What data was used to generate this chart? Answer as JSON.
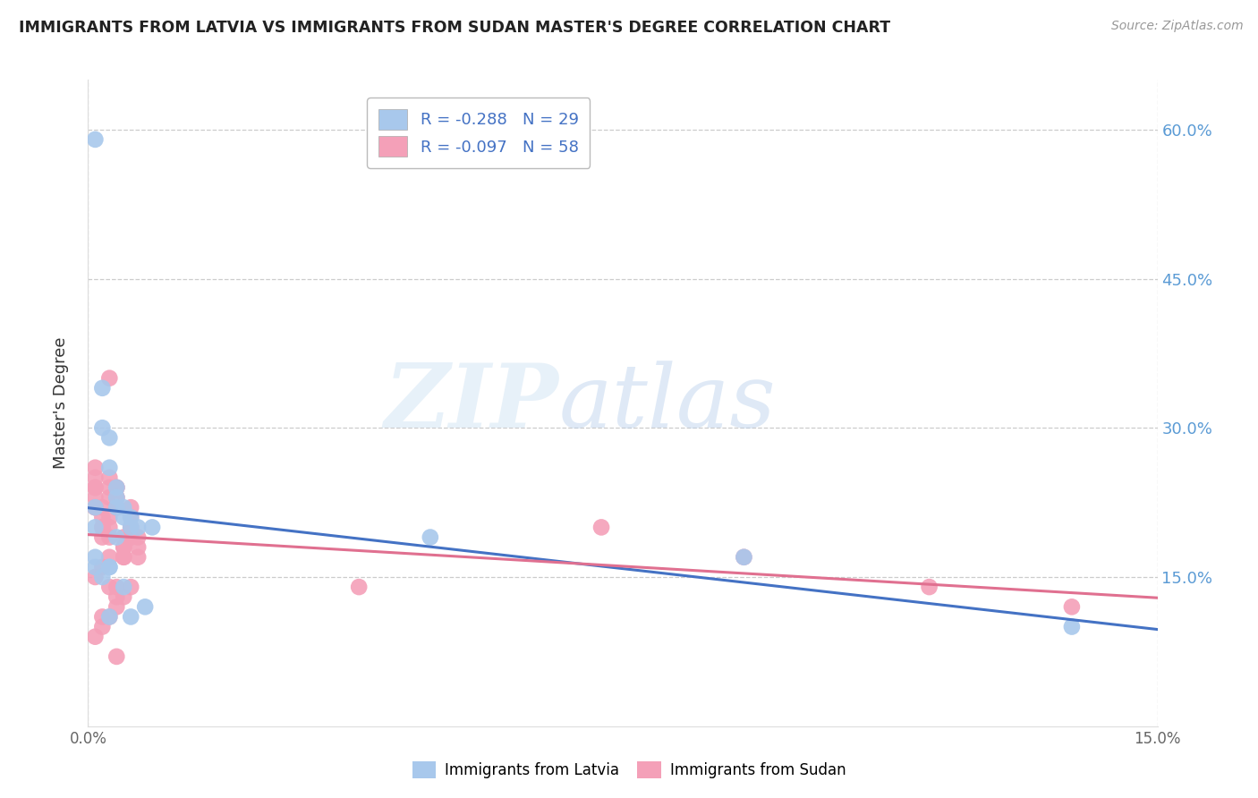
{
  "title": "IMMIGRANTS FROM LATVIA VS IMMIGRANTS FROM SUDAN MASTER'S DEGREE CORRELATION CHART",
  "source": "Source: ZipAtlas.com",
  "ylabel": "Master's Degree",
  "legend_label1": "Immigrants from Latvia",
  "legend_label2": "Immigrants from Sudan",
  "latvia_color": "#A8C8EC",
  "sudan_color": "#F4A0B8",
  "latvia_line_color": "#4472C4",
  "sudan_line_color": "#E07090",
  "latvia_R": -0.288,
  "latvia_N": 29,
  "sudan_R": -0.097,
  "sudan_N": 58,
  "xlim": [
    0.0,
    0.15
  ],
  "ylim": [
    0.0,
    0.65
  ],
  "grid_yticks": [
    0.15,
    0.3,
    0.45,
    0.6
  ],
  "right_yticklabels": [
    "15.0%",
    "30.0%",
    "45.0%",
    "60.0%"
  ],
  "latvia_scatter_x": [
    0.001,
    0.002,
    0.002,
    0.003,
    0.003,
    0.004,
    0.004,
    0.004,
    0.005,
    0.005,
    0.006,
    0.006,
    0.007,
    0.001,
    0.001,
    0.001,
    0.002,
    0.003,
    0.003,
    0.004,
    0.005,
    0.008,
    0.009,
    0.048,
    0.092,
    0.138,
    0.003,
    0.006,
    0.001
  ],
  "latvia_scatter_y": [
    0.59,
    0.34,
    0.3,
    0.29,
    0.26,
    0.24,
    0.22,
    0.23,
    0.22,
    0.21,
    0.21,
    0.2,
    0.2,
    0.2,
    0.17,
    0.16,
    0.15,
    0.16,
    0.16,
    0.19,
    0.14,
    0.12,
    0.2,
    0.19,
    0.17,
    0.1,
    0.11,
    0.11,
    0.22
  ],
  "sudan_scatter_x": [
    0.001,
    0.001,
    0.001,
    0.001,
    0.001,
    0.001,
    0.001,
    0.002,
    0.002,
    0.002,
    0.002,
    0.002,
    0.003,
    0.003,
    0.003,
    0.003,
    0.003,
    0.003,
    0.004,
    0.004,
    0.004,
    0.004,
    0.004,
    0.004,
    0.005,
    0.005,
    0.005,
    0.005,
    0.005,
    0.006,
    0.006,
    0.006,
    0.006,
    0.006,
    0.006,
    0.007,
    0.007,
    0.007,
    0.003,
    0.004,
    0.005,
    0.006,
    0.001,
    0.002,
    0.003,
    0.001,
    0.002,
    0.002,
    0.003,
    0.004,
    0.004,
    0.004,
    0.038,
    0.072,
    0.092,
    0.118,
    0.138,
    0.003
  ],
  "sudan_scatter_y": [
    0.22,
    0.22,
    0.23,
    0.24,
    0.24,
    0.25,
    0.26,
    0.22,
    0.21,
    0.2,
    0.19,
    0.2,
    0.21,
    0.23,
    0.24,
    0.25,
    0.2,
    0.19,
    0.22,
    0.22,
    0.23,
    0.23,
    0.24,
    0.24,
    0.19,
    0.18,
    0.18,
    0.17,
    0.17,
    0.19,
    0.19,
    0.2,
    0.2,
    0.21,
    0.22,
    0.17,
    0.18,
    0.19,
    0.14,
    0.14,
    0.13,
    0.14,
    0.15,
    0.16,
    0.17,
    0.09,
    0.1,
    0.11,
    0.11,
    0.12,
    0.13,
    0.07,
    0.14,
    0.2,
    0.17,
    0.14,
    0.12,
    0.35
  ]
}
